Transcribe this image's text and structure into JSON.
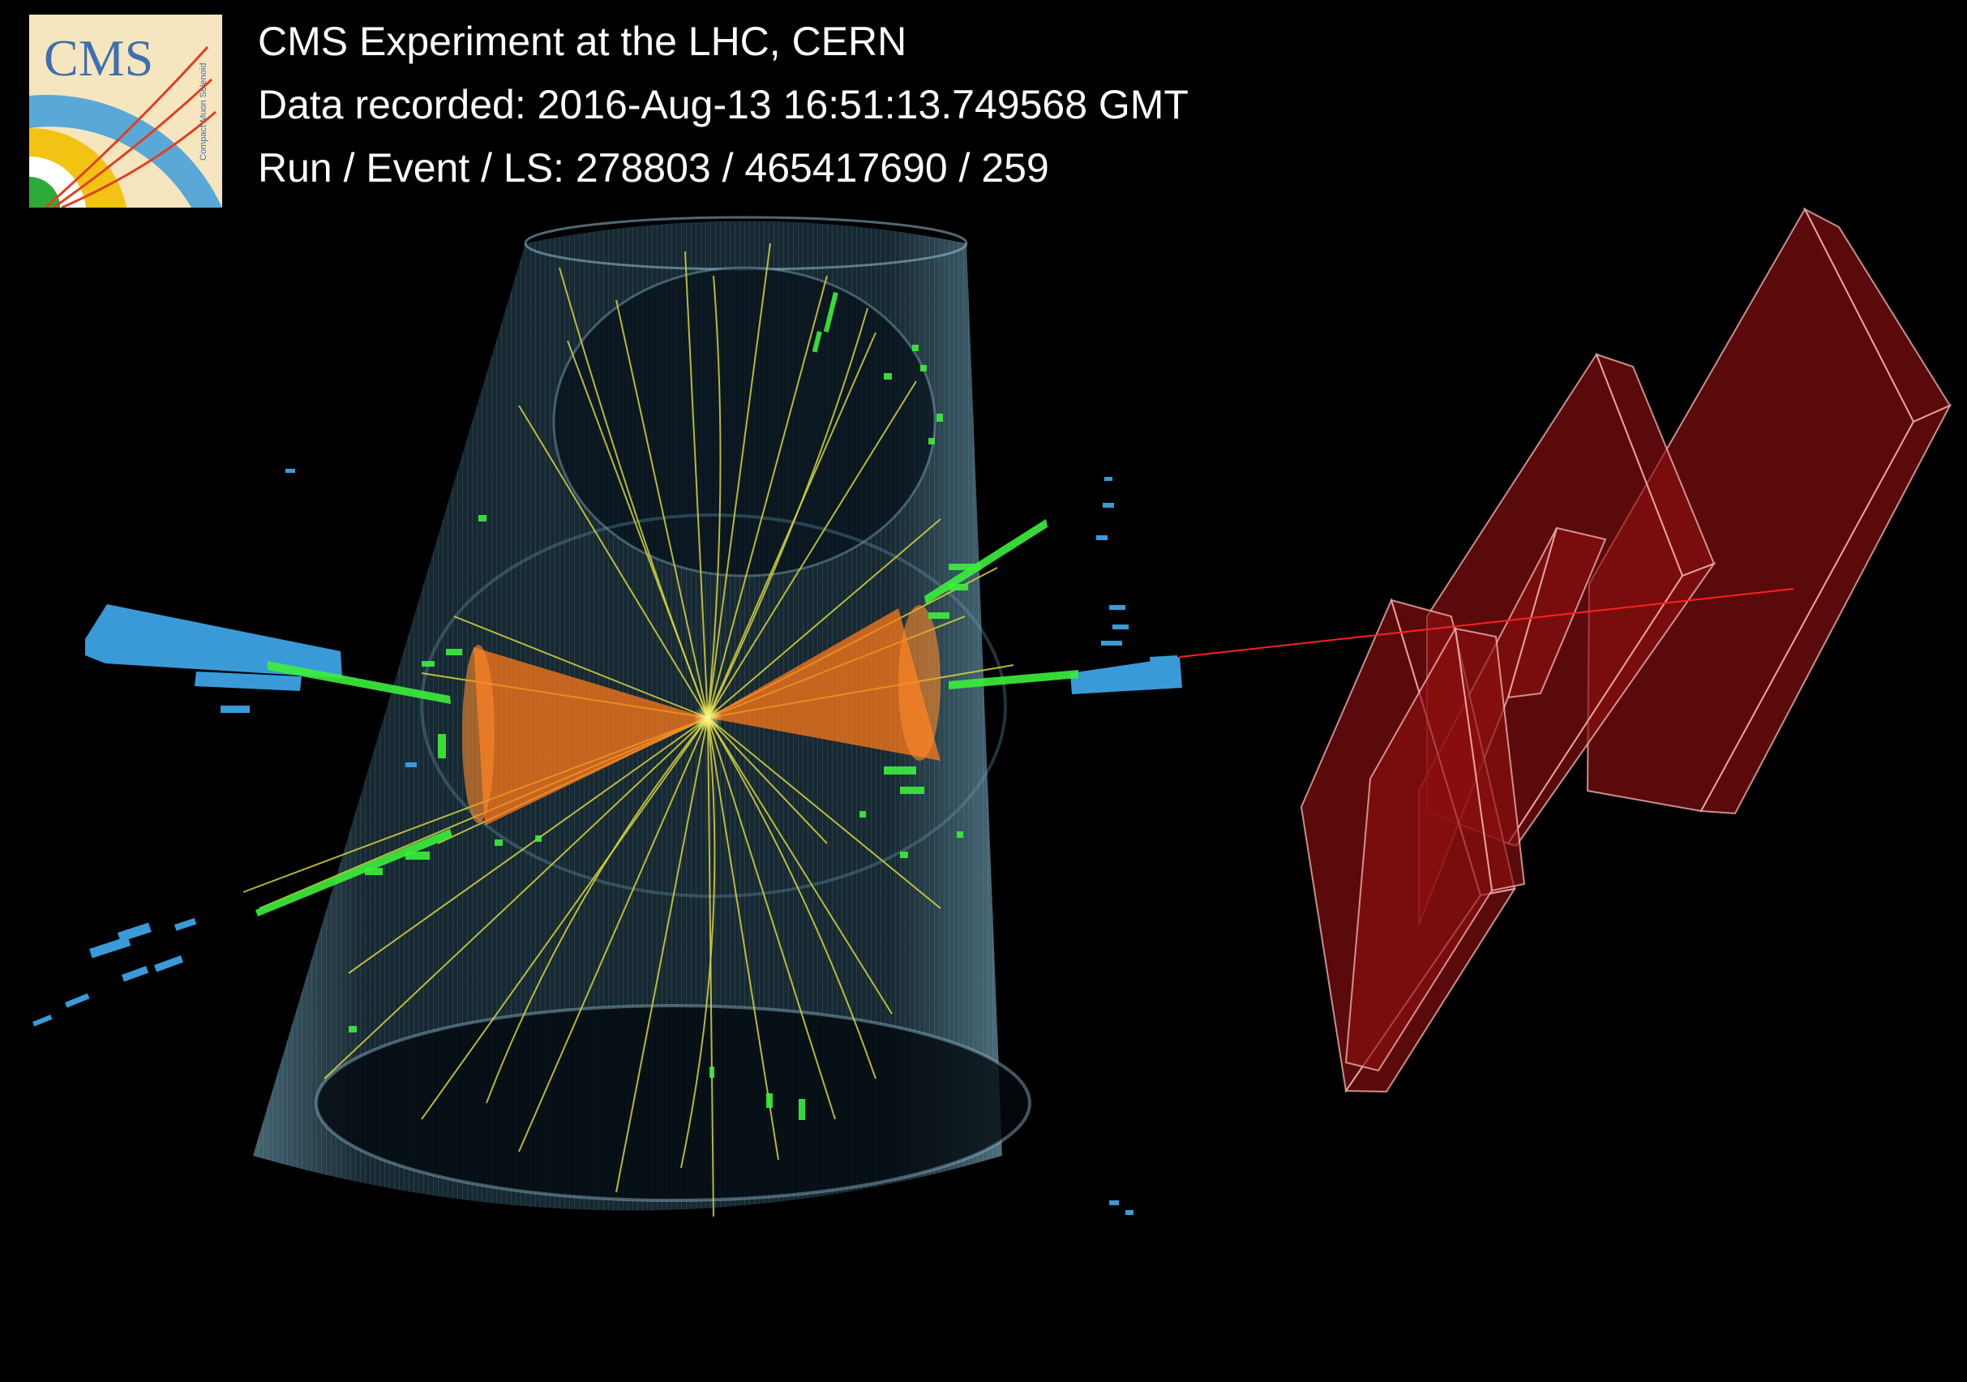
{
  "header": {
    "line1": "CMS Experiment at the LHC, CERN",
    "line2": "Data recorded: 2016-Aug-13 16:51:13.749568 GMT",
    "line3": "Run / Event / LS: 278803 / 465417690 / 259"
  },
  "logo": {
    "text": "CMS",
    "subtext": "Compact Muon Solenoid"
  },
  "colors": {
    "background": "#000000",
    "text": "#ffffff",
    "tracks": "#d8d43a",
    "ecal": "#3cf03c",
    "hcal": "#3a9ad8",
    "jets": "#ff7a1a",
    "detector": "#8fc4dc",
    "muon_chambers": "#8a1010",
    "muon_track": "#ff2020"
  }
}
